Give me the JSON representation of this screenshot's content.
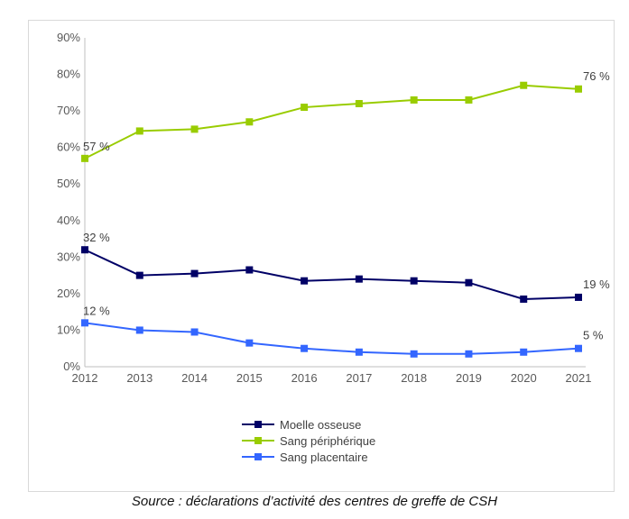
{
  "chart_data": {
    "type": "line",
    "categories": [
      "2012",
      "2013",
      "2014",
      "2015",
      "2016",
      "2017",
      "2018",
      "2019",
      "2020",
      "2021"
    ],
    "y_ticks": [
      "0%",
      "10%",
      "20%",
      "30%",
      "40%",
      "50%",
      "60%",
      "70%",
      "80%",
      "90%"
    ],
    "ylim": [
      0,
      90
    ],
    "grid": false,
    "legend_position": "bottom",
    "series": [
      {
        "name": "Moelle osseuse",
        "color": "#000066",
        "values": [
          32,
          25,
          25.5,
          26.5,
          23.5,
          24,
          23.5,
          23,
          18.5,
          19
        ],
        "labels": {
          "first": "32 %",
          "last": "19 %"
        }
      },
      {
        "name": "Sang périphérique",
        "color": "#99cc00",
        "values": [
          57,
          64.5,
          65,
          67,
          71,
          72,
          73,
          73,
          77,
          76
        ],
        "labels": {
          "first": "57 %",
          "last": "76 %"
        }
      },
      {
        "name": "Sang placentaire",
        "color": "#3366ff",
        "values": [
          12,
          10,
          9.5,
          6.5,
          5,
          4,
          3.5,
          3.5,
          4,
          5
        ],
        "labels": {
          "first": "12 %",
          "last": "5 %"
        }
      }
    ]
  },
  "source": "Source : déclarations d’activité des centres de greffe de CSH"
}
